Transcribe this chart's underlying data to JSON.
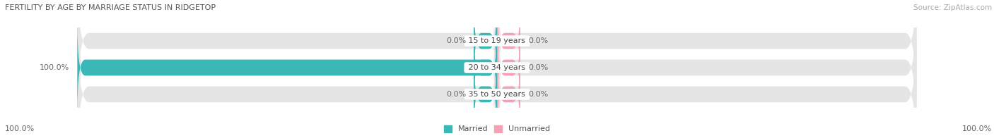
{
  "title": "FERTILITY BY AGE BY MARRIAGE STATUS IN RIDGETOP",
  "source": "Source: ZipAtlas.com",
  "categories": [
    "15 to 19 years",
    "20 to 34 years",
    "35 to 50 years"
  ],
  "married_values": [
    0.0,
    100.0,
    0.0
  ],
  "unmarried_values": [
    0.0,
    0.0,
    0.0
  ],
  "married_color": "#3ab8b8",
  "unmarried_color": "#f4a0b5",
  "bar_bg_color": "#e5e5e5",
  "married_label": "Married",
  "unmarried_label": "Unmarried",
  "title_fontsize": 8,
  "source_fontsize": 7.5,
  "label_fontsize": 8,
  "cat_fontsize": 8,
  "tick_fontsize": 8,
  "bar_height": 0.6,
  "figsize": [
    14.06,
    1.96
  ],
  "dpi": 100,
  "x_left_label": "100.0%",
  "x_right_label": "100.0%",
  "background_color": "#ffffff",
  "stub_size": 6.0,
  "xlim": [
    -110,
    110
  ]
}
